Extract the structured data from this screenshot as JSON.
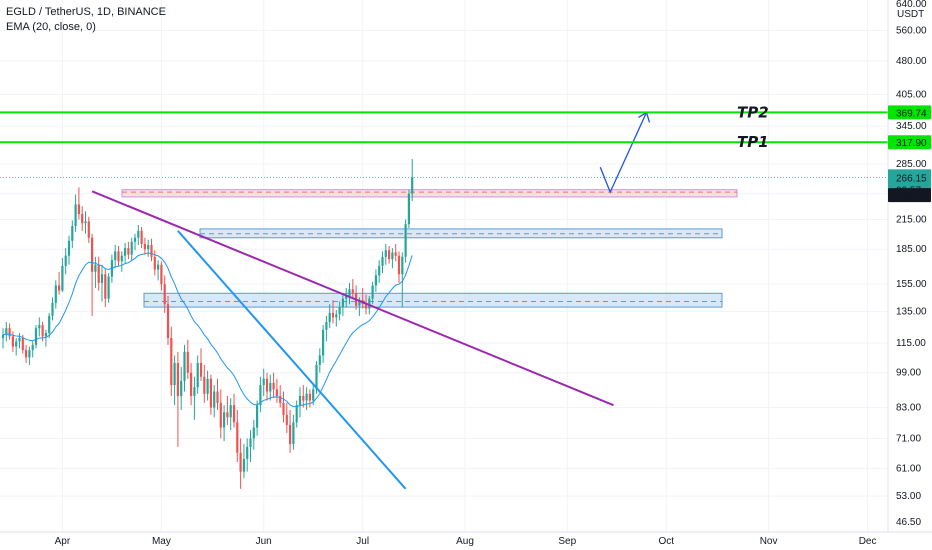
{
  "legend": {
    "symbol_line": "EGLD / TetherUS, 1D, BINANCE",
    "indicator_line": "EMA (20, close, 0)"
  },
  "price_axis": {
    "currency_top": "640.00",
    "currency": "USDT"
  },
  "colors": {
    "up": "#26a69a",
    "down": "#ef5350",
    "tp_line": "#00e600",
    "trend_purple": "#9c27b0",
    "trend_blue": "#2196f3",
    "arrow": "#1e53e5",
    "ema": "#2196f3",
    "resistance_box": "#f4c7c7",
    "support_box": "#bcd3f0",
    "last_price_bg": "#26a69a"
  },
  "chart_data": {
    "type": "candlestick",
    "title": "EGLD / TetherUS, 1D, BINANCE",
    "indicator": "EMA (20, close, 0)",
    "y_scale": "log",
    "ylim": [
      46.5,
      640
    ],
    "y_ticks": [
      "640.00",
      "560.00",
      "480.00",
      "405.00",
      "345.00",
      "285.00",
      "245.00",
      "215.00",
      "185.00",
      "155.00",
      "135.00",
      "115.00",
      "99.00",
      "83.00",
      "71.00",
      "61.00",
      "53.00",
      "46.50"
    ],
    "x_ticks": [
      "Apr",
      "May",
      "Jun",
      "Jul",
      "Aug",
      "Sep",
      "Oct",
      "Nov",
      "Dec"
    ],
    "price_labels": [
      {
        "text": "369.74",
        "role": "TP2"
      },
      {
        "text": "317.90",
        "role": "TP1"
      },
      {
        "text": "266.15",
        "role": "last price"
      },
      {
        "text": "00:57",
        "role": "countdown"
      },
      {
        "text": "246.89",
        "role": "resistance"
      }
    ],
    "targets": [
      {
        "label": "TP2",
        "price": 369.74
      },
      {
        "label": "TP1",
        "price": 317.9
      }
    ],
    "zones": [
      {
        "kind": "resistance",
        "top": 250,
        "bottom": 241,
        "mid": 246.89
      },
      {
        "kind": "support",
        "top": 205,
        "bottom": 196,
        "mid": 200
      },
      {
        "kind": "support",
        "top": 148,
        "bottom": 138,
        "mid": 142
      }
    ],
    "last_price": 266.15,
    "countdown": "00:57",
    "candles_start": "Mar 13",
    "ohlc": [
      [
        118,
        124,
        112,
        120
      ],
      [
        120,
        128,
        116,
        124
      ],
      [
        124,
        127,
        117,
        119
      ],
      [
        119,
        122,
        110,
        113
      ],
      [
        113,
        118,
        108,
        116
      ],
      [
        116,
        121,
        112,
        118
      ],
      [
        118,
        120,
        109,
        111
      ],
      [
        111,
        114,
        104,
        107
      ],
      [
        107,
        113,
        103,
        111
      ],
      [
        111,
        116,
        107,
        114
      ],
      [
        114,
        126,
        112,
        124
      ],
      [
        124,
        131,
        119,
        126
      ],
      [
        126,
        128,
        116,
        119
      ],
      [
        119,
        123,
        113,
        121
      ],
      [
        121,
        134,
        118,
        132
      ],
      [
        132,
        145,
        129,
        141
      ],
      [
        141,
        158,
        137,
        154
      ],
      [
        154,
        165,
        147,
        150
      ],
      [
        150,
        177,
        149,
        170
      ],
      [
        170,
        186,
        163,
        179
      ],
      [
        179,
        198,
        171,
        193
      ],
      [
        193,
        214,
        186,
        208
      ],
      [
        208,
        244,
        202,
        232
      ],
      [
        232,
        253,
        215,
        221
      ],
      [
        221,
        230,
        203,
        211
      ],
      [
        211,
        224,
        200,
        213
      ],
      [
        213,
        218,
        191,
        196
      ],
      [
        196,
        200,
        132,
        165
      ],
      [
        165,
        178,
        152,
        171
      ],
      [
        171,
        178,
        150,
        156
      ],
      [
        156,
        171,
        142,
        163
      ],
      [
        163,
        168,
        138,
        144
      ],
      [
        144,
        164,
        141,
        161
      ],
      [
        161,
        180,
        156,
        175
      ],
      [
        175,
        189,
        168,
        183
      ],
      [
        183,
        188,
        170,
        174
      ],
      [
        174,
        183,
        165,
        179
      ],
      [
        179,
        191,
        172,
        186
      ],
      [
        186,
        192,
        176,
        180
      ],
      [
        180,
        196,
        175,
        192
      ],
      [
        192,
        200,
        184,
        196
      ],
      [
        196,
        209,
        189,
        203
      ],
      [
        203,
        207,
        186,
        190
      ],
      [
        190,
        196,
        180,
        185
      ],
      [
        185,
        194,
        178,
        189
      ],
      [
        189,
        195,
        174,
        178
      ],
      [
        178,
        184,
        162,
        167
      ],
      [
        167,
        175,
        158,
        171
      ],
      [
        171,
        174,
        150,
        155
      ],
      [
        155,
        162,
        134,
        140
      ],
      [
        140,
        146,
        114,
        118
      ],
      [
        118,
        125,
        88,
        93
      ],
      [
        93,
        108,
        84,
        104
      ],
      [
        104,
        110,
        68,
        88
      ],
      [
        88,
        102,
        82,
        95
      ],
      [
        95,
        114,
        90,
        110
      ],
      [
        110,
        117,
        96,
        99
      ],
      [
        99,
        104,
        84,
        88
      ],
      [
        88,
        97,
        78,
        92
      ],
      [
        92,
        108,
        89,
        104
      ],
      [
        104,
        112,
        95,
        97
      ],
      [
        97,
        103,
        85,
        89
      ],
      [
        89,
        100,
        86,
        96
      ],
      [
        96,
        98,
        80,
        83
      ],
      [
        83,
        93,
        79,
        90
      ],
      [
        90,
        96,
        82,
        85
      ],
      [
        85,
        91,
        71,
        75
      ],
      [
        75,
        84,
        70,
        81
      ],
      [
        81,
        88,
        76,
        79
      ],
      [
        79,
        87,
        74,
        84
      ],
      [
        84,
        89,
        75,
        77
      ],
      [
        77,
        82,
        63,
        66
      ],
      [
        66,
        71,
        55,
        60
      ],
      [
        60,
        69,
        58,
        64
      ],
      [
        64,
        71,
        60,
        68
      ],
      [
        68,
        74,
        63,
        71
      ],
      [
        71,
        78,
        67,
        75
      ],
      [
        75,
        86,
        72,
        84
      ],
      [
        84,
        97,
        81,
        93
      ],
      [
        93,
        101,
        88,
        96
      ],
      [
        96,
        99,
        86,
        90
      ],
      [
        90,
        98,
        86,
        94
      ],
      [
        94,
        99,
        87,
        91
      ],
      [
        91,
        96,
        85,
        88
      ],
      [
        88,
        93,
        83,
        85
      ],
      [
        85,
        90,
        77,
        80
      ],
      [
        80,
        85,
        73,
        76
      ],
      [
        76,
        82,
        66,
        69
      ],
      [
        69,
        80,
        67,
        77
      ],
      [
        77,
        86,
        75,
        84
      ],
      [
        84,
        92,
        79,
        88
      ],
      [
        88,
        93,
        83,
        86
      ],
      [
        86,
        92,
        82,
        89
      ],
      [
        89,
        91,
        83,
        86
      ],
      [
        86,
        93,
        84,
        91
      ],
      [
        91,
        105,
        89,
        103
      ],
      [
        103,
        112,
        99,
        108
      ],
      [
        108,
        126,
        104,
        123
      ],
      [
        123,
        132,
        116,
        128
      ],
      [
        128,
        140,
        124,
        134
      ],
      [
        134,
        143,
        127,
        131
      ],
      [
        131,
        136,
        125,
        133
      ],
      [
        133,
        142,
        129,
        138
      ],
      [
        138,
        148,
        132,
        144
      ],
      [
        144,
        152,
        138,
        146
      ],
      [
        146,
        156,
        140,
        151
      ],
      [
        151,
        159,
        144,
        148
      ],
      [
        148,
        154,
        136,
        139
      ],
      [
        139,
        145,
        132,
        143
      ],
      [
        143,
        152,
        137,
        140
      ],
      [
        140,
        147,
        133,
        137
      ],
      [
        137,
        146,
        133,
        144
      ],
      [
        144,
        157,
        140,
        154
      ],
      [
        154,
        167,
        149,
        162
      ],
      [
        162,
        175,
        156,
        170
      ],
      [
        170,
        183,
        164,
        178
      ],
      [
        178,
        190,
        171,
        184
      ],
      [
        184,
        188,
        172,
        176
      ],
      [
        176,
        186,
        168,
        182
      ],
      [
        182,
        190,
        174,
        179
      ],
      [
        179,
        183,
        156,
        163
      ],
      [
        163,
        182,
        138,
        178
      ],
      [
        178,
        215,
        173,
        210
      ],
      [
        210,
        250,
        206,
        245
      ],
      [
        245,
        292,
        236,
        266
      ]
    ],
    "ema_20_segments": [
      {
        "from": "Mar 13",
        "to": "Sep 9",
        "source": "computed from ohlc"
      }
    ],
    "trendlines": [
      {
        "name": "",
        "color": "purple",
        "from": {
          "date": "Apr 10",
          "price": 248
        },
        "to": {
          "date": "Sep 15",
          "price": 84
        }
      },
      {
        "name": "",
        "color": "blue",
        "from": {
          "date": "May 6",
          "price": 203
        },
        "to": {
          "date": "Jul 14",
          "price": 55
        }
      }
    ],
    "projection_arrow": [
      {
        "date": "Sep 11",
        "price": 280
      },
      {
        "date": "Sep 14",
        "price": 247
      },
      {
        "date": "Sep 25",
        "price": 369.74
      }
    ]
  }
}
